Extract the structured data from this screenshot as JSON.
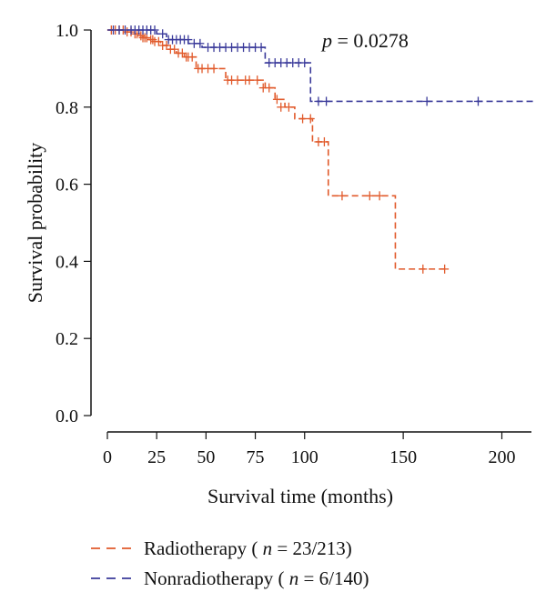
{
  "chart_data": {
    "type": "line",
    "title": "",
    "xlabel": "Survival time (months)",
    "ylabel": "Survival probability",
    "xlim": [
      0,
      215
    ],
    "ylim": [
      0,
      1
    ],
    "x_ticks": [
      0,
      25,
      50,
      75,
      100,
      150,
      200
    ],
    "x_tick_labels": [
      "0",
      "25",
      "50",
      "75",
      "100",
      "150",
      "200"
    ],
    "y_ticks": [
      0,
      0.2,
      0.4,
      0.6,
      0.8,
      1
    ],
    "y_tick_labels": [
      "0.0",
      "0.2",
      "0.4",
      "0.6",
      "0.8",
      "1.0"
    ],
    "annotation": {
      "p_symbol": "p",
      "p_value": "= 0.0278"
    },
    "legend_position": "bottom",
    "series": [
      {
        "name": "Radiotherapy",
        "name_parts": {
          "prefix": "Radiotherapy (",
          "n_symbol": "n",
          "suffix": " = 23/213)"
        },
        "color": "#e15a2b",
        "line_style": "dashed",
        "steps": [
          [
            0,
            1.0
          ],
          [
            10,
            0.995
          ],
          [
            13,
            0.99
          ],
          [
            16,
            0.985
          ],
          [
            18,
            0.98
          ],
          [
            21,
            0.975
          ],
          [
            24,
            0.97
          ],
          [
            27,
            0.96
          ],
          [
            31,
            0.95
          ],
          [
            35,
            0.94
          ],
          [
            39,
            0.93
          ],
          [
            45,
            0.9
          ],
          [
            60,
            0.87
          ],
          [
            80,
            0.85
          ],
          [
            85,
            0.82
          ],
          [
            90,
            0.8
          ],
          [
            95,
            0.77
          ],
          [
            104,
            0.71
          ],
          [
            112,
            0.57
          ],
          [
            146,
            0.38
          ],
          [
            172,
            0.38
          ]
        ],
        "censored": [
          [
            2,
            1.0
          ],
          [
            4,
            1.0
          ],
          [
            6,
            1.0
          ],
          [
            8,
            1.0
          ],
          [
            10,
            0.995
          ],
          [
            12,
            0.995
          ],
          [
            14,
            0.99
          ],
          [
            15,
            0.99
          ],
          [
            17,
            0.985
          ],
          [
            18,
            0.98
          ],
          [
            19,
            0.98
          ],
          [
            20,
            0.98
          ],
          [
            22,
            0.975
          ],
          [
            23,
            0.975
          ],
          [
            24,
            0.97
          ],
          [
            26,
            0.97
          ],
          [
            28,
            0.96
          ],
          [
            30,
            0.96
          ],
          [
            32,
            0.95
          ],
          [
            34,
            0.95
          ],
          [
            36,
            0.94
          ],
          [
            38,
            0.94
          ],
          [
            40,
            0.93
          ],
          [
            41,
            0.93
          ],
          [
            43,
            0.93
          ],
          [
            46,
            0.9
          ],
          [
            48,
            0.9
          ],
          [
            51,
            0.9
          ],
          [
            54,
            0.9
          ],
          [
            61,
            0.87
          ],
          [
            63,
            0.87
          ],
          [
            66,
            0.87
          ],
          [
            70,
            0.87
          ],
          [
            72,
            0.87
          ],
          [
            76,
            0.87
          ],
          [
            79,
            0.85
          ],
          [
            82,
            0.85
          ],
          [
            86,
            0.82
          ],
          [
            88,
            0.8
          ],
          [
            92,
            0.8
          ],
          [
            99,
            0.77
          ],
          [
            103,
            0.77
          ],
          [
            107,
            0.71
          ],
          [
            110,
            0.71
          ],
          [
            119,
            0.57
          ],
          [
            133,
            0.57
          ],
          [
            138,
            0.57
          ],
          [
            160,
            0.38
          ],
          [
            171,
            0.38
          ]
        ]
      },
      {
        "name": "Nonradiotherapy",
        "name_parts": {
          "prefix": "Nonradiotherapy (",
          "n_symbol": "n",
          "suffix": " = 6/140)"
        },
        "color": "#3a3a9a",
        "line_style": "dashed",
        "steps": [
          [
            0,
            1.0
          ],
          [
            25,
            0.99
          ],
          [
            30,
            0.975
          ],
          [
            41,
            0.965
          ],
          [
            48,
            0.955
          ],
          [
            80,
            0.915
          ],
          [
            103,
            0.815
          ],
          [
            217,
            0.815
          ]
        ],
        "censored": [
          [
            3,
            1.0
          ],
          [
            6,
            1.0
          ],
          [
            9,
            1.0
          ],
          [
            12,
            1.0
          ],
          [
            14,
            1.0
          ],
          [
            16,
            1.0
          ],
          [
            18,
            1.0
          ],
          [
            20,
            1.0
          ],
          [
            22,
            1.0
          ],
          [
            24,
            1.0
          ],
          [
            28,
            0.99
          ],
          [
            31,
            0.975
          ],
          [
            33,
            0.975
          ],
          [
            35,
            0.975
          ],
          [
            37,
            0.975
          ],
          [
            39,
            0.975
          ],
          [
            41,
            0.975
          ],
          [
            44,
            0.965
          ],
          [
            47,
            0.965
          ],
          [
            51,
            0.955
          ],
          [
            54,
            0.955
          ],
          [
            57,
            0.955
          ],
          [
            60,
            0.955
          ],
          [
            63,
            0.955
          ],
          [
            66,
            0.955
          ],
          [
            69,
            0.955
          ],
          [
            72,
            0.955
          ],
          [
            75,
            0.955
          ],
          [
            78,
            0.955
          ],
          [
            82,
            0.915
          ],
          [
            85,
            0.915
          ],
          [
            88,
            0.915
          ],
          [
            91,
            0.915
          ],
          [
            94,
            0.915
          ],
          [
            97,
            0.915
          ],
          [
            100,
            0.915
          ],
          [
            107,
            0.815
          ],
          [
            111,
            0.815
          ],
          [
            162,
            0.815
          ],
          [
            188,
            0.815
          ]
        ]
      }
    ]
  }
}
